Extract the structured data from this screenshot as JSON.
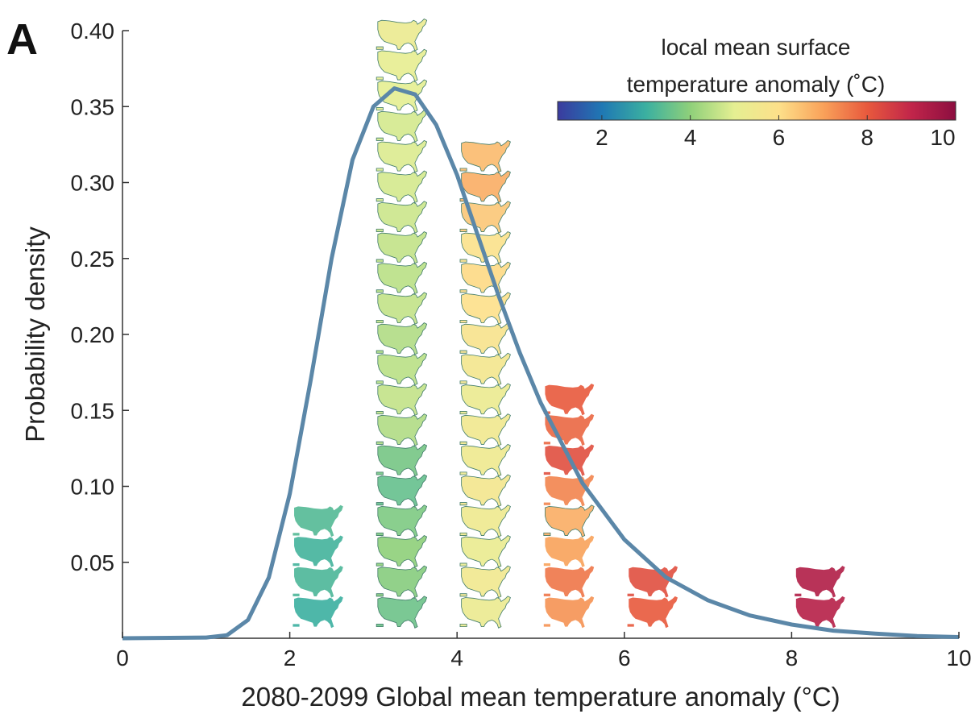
{
  "panel_label": "A",
  "chart_data": {
    "type": "line",
    "title": "",
    "xlabel": "2080-2099 Global mean temperature anomaly (°C)",
    "ylabel": "Probability density",
    "xlim": [
      0,
      10
    ],
    "ylim": [
      0,
      0.4
    ],
    "x_ticks": [
      "0",
      "2",
      "4",
      "6",
      "8",
      "10"
    ],
    "y_ticks": [
      "0.05",
      "0.10",
      "0.15",
      "0.20",
      "0.25",
      "0.30",
      "0.35",
      "0.40"
    ],
    "grid": false,
    "legend": "none",
    "series": [
      {
        "color": "#5b87a8",
        "x": [
          0,
          1.0,
          1.25,
          1.5,
          1.75,
          2.0,
          2.25,
          2.5,
          2.75,
          3.0,
          3.25,
          3.5,
          3.75,
          4.0,
          4.25,
          4.5,
          4.75,
          5.0,
          5.5,
          6.0,
          6.5,
          7.0,
          7.5,
          8.0,
          8.5,
          9.0,
          9.5,
          10.0
        ],
        "y": [
          0,
          0.0005,
          0.002,
          0.012,
          0.04,
          0.095,
          0.17,
          0.25,
          0.315,
          0.35,
          0.362,
          0.358,
          0.338,
          0.305,
          0.265,
          0.225,
          0.188,
          0.155,
          0.102,
          0.065,
          0.04,
          0.025,
          0.015,
          0.009,
          0.005,
          0.003,
          0.0015,
          0.0008
        ]
      }
    ],
    "colorbar": {
      "title_line1": "local mean surface",
      "title_line2": "temperature anomaly (˚C)",
      "range": [
        1,
        10
      ],
      "ticks": [
        "2",
        "4",
        "6",
        "8",
        "10"
      ],
      "colors": [
        "#3b3b9e",
        "#1f78b4",
        "#3bb0a0",
        "#8fd07a",
        "#e5ef92",
        "#fde08a",
        "#f9a25a",
        "#e8593d",
        "#c1254a",
        "#8c0e40"
      ]
    },
    "map_insets": [
      {
        "column_x": 2,
        "values": [
          3.0,
          3.2,
          3.1,
          3.3
        ]
      },
      {
        "column_x": 3,
        "values": [
          3.6,
          3.9,
          4.0,
          3.8,
          3.5,
          3.7,
          4.4,
          4.6,
          4.5,
          4.4,
          4.6,
          4.5,
          4.6,
          4.7,
          4.8,
          4.9,
          4.8,
          5.0,
          5.1,
          5.3
        ]
      },
      {
        "column_x": 4,
        "values": [
          5.3,
          5.5,
          5.2,
          5.4,
          5.6,
          5.4,
          5.5,
          5.3,
          5.6,
          5.8,
          6.0,
          6.1,
          5.9,
          6.4,
          6.8,
          6.6
        ]
      },
      {
        "column_x": 5,
        "values": [
          7.2,
          7.6,
          7.0,
          6.8,
          7.4,
          8.2,
          7.8,
          8.0
        ]
      },
      {
        "column_x": 6,
        "values": [
          8.0,
          8.2
        ]
      },
      {
        "column_x": 8,
        "values": [
          9.2,
          9.3
        ]
      }
    ]
  }
}
